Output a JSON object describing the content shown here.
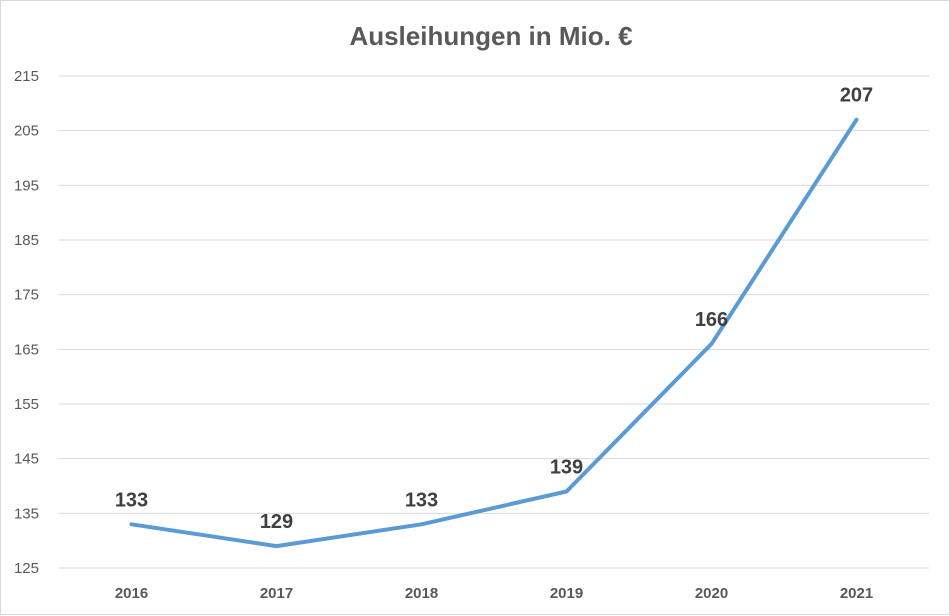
{
  "chart_data": {
    "type": "line",
    "title": "Ausleihungen in Mio. €",
    "xlabel": "",
    "ylabel": "",
    "categories": [
      "2016",
      "2017",
      "2018",
      "2019",
      "2020",
      "2021"
    ],
    "series": [
      {
        "values": [
          133,
          129,
          133,
          139,
          166,
          207
        ],
        "color": "#5b9bd5"
      }
    ],
    "ylim": [
      125,
      215
    ],
    "yticks": [
      125,
      135,
      145,
      155,
      165,
      175,
      185,
      195,
      205,
      215
    ],
    "grid": true,
    "legend": "none",
    "data_labels": true
  }
}
